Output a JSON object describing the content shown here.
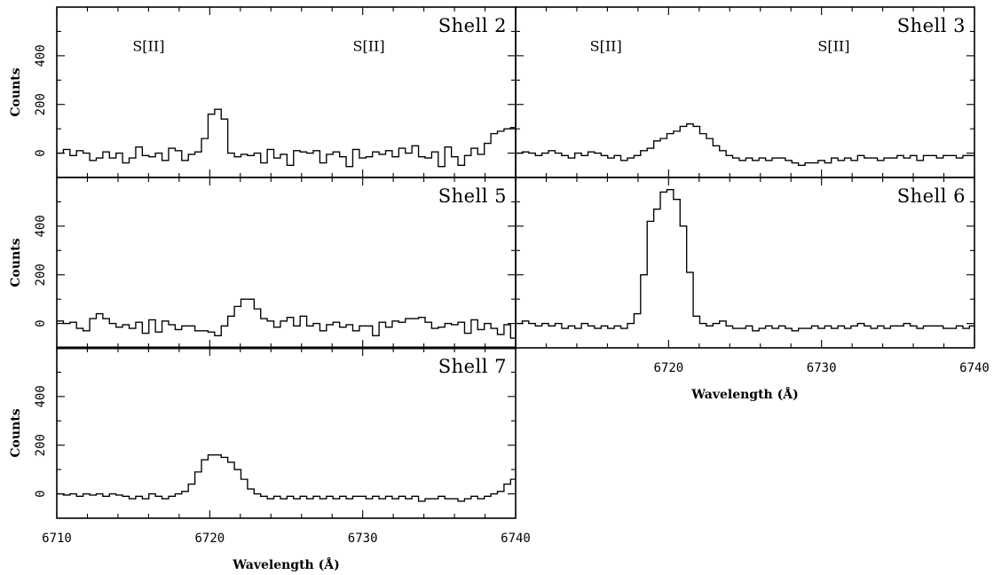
{
  "chart_data": [
    {
      "type": "line",
      "title": "Shell 2",
      "xlim": [
        6710,
        6740
      ],
      "ylim": [
        -100,
        600
      ],
      "ylabel": "Counts",
      "xlabel": "",
      "x_ticks": [
        6710,
        6720,
        6730,
        6740
      ],
      "y_ticks": [
        0,
        200,
        400
      ],
      "annotations": [
        {
          "text": "S[II]",
          "x": 6716.0,
          "y": 420
        },
        {
          "text": "S[II]",
          "x": 6730.4,
          "y": 420
        }
      ],
      "series": [
        {
          "x0": 6710.0,
          "step": 0.43,
          "values": [
            0,
            15,
            -10,
            10,
            0,
            -30,
            -20,
            5,
            -20,
            0,
            -40,
            -20,
            25,
            -10,
            -15,
            0,
            -30,
            20,
            10,
            -30,
            -5,
            5,
            60,
            160,
            180,
            140,
            0,
            -15,
            -5,
            -10,
            0,
            -40,
            15,
            -20,
            -5,
            -50,
            10,
            5,
            0,
            10,
            -40,
            -5,
            5,
            -15,
            -55,
            15,
            -20,
            -15,
            5,
            -5,
            10,
            -15,
            20,
            0,
            30,
            -15,
            -20,
            5,
            -55,
            25,
            -15,
            -50,
            -10,
            20,
            -5,
            40,
            80,
            90,
            100,
            105,
            100,
            -70,
            -30,
            10,
            -40,
            -20,
            -25,
            -10,
            -30,
            0,
            -20,
            -25,
            -5,
            -30,
            0,
            -20,
            0,
            -45,
            10,
            -15,
            -20,
            -25,
            -5,
            -50,
            -20,
            10,
            -5,
            -10,
            0,
            -5
          ]
        }
      ]
    },
    {
      "type": "line",
      "title": "Shell 3",
      "xlim": [
        6710,
        6740
      ],
      "ylim": [
        -100,
        600
      ],
      "ylabel": "",
      "xlabel": "",
      "x_ticks": [
        6710,
        6720,
        6730,
        6740
      ],
      "y_ticks": [
        0,
        200,
        400
      ],
      "annotations": [
        {
          "text": "S[II]",
          "x": 6715.9,
          "y": 420
        },
        {
          "text": "S[II]",
          "x": 6730.8,
          "y": 420
        }
      ],
      "series": [
        {
          "x0": 6710.0,
          "step": 0.43,
          "values": [
            0,
            5,
            0,
            -10,
            0,
            10,
            0,
            -10,
            -20,
            0,
            -10,
            5,
            0,
            -10,
            -20,
            -10,
            -30,
            -20,
            -10,
            10,
            20,
            50,
            60,
            80,
            90,
            110,
            120,
            110,
            80,
            60,
            30,
            10,
            -10,
            -20,
            -30,
            -20,
            -30,
            -20,
            -30,
            -20,
            -20,
            -30,
            -40,
            -50,
            -40,
            -40,
            -30,
            -40,
            -20,
            -30,
            -20,
            -30,
            -10,
            -20,
            -20,
            -30,
            -20,
            -20,
            -10,
            -20,
            -10,
            -30,
            -10,
            -10,
            -20,
            -10,
            -10,
            -20,
            -10,
            -10,
            0,
            -10,
            10,
            20,
            40,
            50,
            70,
            80,
            90,
            70,
            50,
            0,
            -10,
            -30,
            -20,
            -30,
            -10,
            -20,
            -20,
            -10,
            -20,
            -10,
            -20,
            -30,
            -20,
            -20,
            -30,
            -20,
            -10,
            -20,
            -30,
            -20,
            -30,
            -20,
            -10,
            -30,
            -20,
            0
          ]
        }
      ]
    },
    {
      "type": "line",
      "title": "Shell 5",
      "xlim": [
        6710,
        6740
      ],
      "ylim": [
        -100,
        600
      ],
      "ylabel": "Counts",
      "xlabel": "",
      "x_ticks": [
        6710,
        6720,
        6730,
        6740
      ],
      "y_ticks": [
        0,
        200,
        400
      ],
      "annotations": [],
      "series": [
        {
          "x0": 6710.0,
          "step": 0.43,
          "values": [
            10,
            0,
            5,
            -20,
            -30,
            20,
            40,
            20,
            0,
            -15,
            -5,
            -20,
            5,
            -40,
            15,
            -35,
            10,
            -5,
            -25,
            -10,
            -10,
            -30,
            -30,
            -35,
            -50,
            -10,
            30,
            70,
            100,
            100,
            60,
            20,
            10,
            -15,
            10,
            25,
            -10,
            30,
            -10,
            0,
            -30,
            -5,
            5,
            -15,
            -5,
            -30,
            -10,
            -10,
            -50,
            5,
            -15,
            10,
            5,
            20,
            20,
            25,
            5,
            -20,
            -15,
            0,
            -5,
            5,
            -40,
            15,
            -25,
            0,
            -20,
            -45,
            -5,
            -60,
            -15,
            25,
            -10,
            -10,
            20,
            -25,
            20,
            40,
            35,
            35,
            25,
            -20,
            -5,
            -30,
            -70,
            -20,
            -45,
            -10,
            -35,
            15,
            -30,
            -5,
            -20,
            -5,
            -10,
            0,
            -30,
            -55,
            -10,
            -70
          ]
        }
      ]
    },
    {
      "type": "line",
      "title": "Shell 6",
      "xlim": [
        6710,
        6740
      ],
      "ylim": [
        -100,
        600
      ],
      "ylabel": "",
      "xlabel": "Wavelength (Å)",
      "x_ticks": [
        6720,
        6730,
        6740
      ],
      "y_ticks": [
        0,
        200,
        400
      ],
      "annotations": [],
      "series": [
        {
          "x0": 6710.0,
          "step": 0.43,
          "values": [
            0,
            10,
            0,
            -10,
            0,
            -10,
            0,
            -20,
            -10,
            -20,
            0,
            -10,
            -20,
            -10,
            -20,
            -10,
            -20,
            0,
            40,
            200,
            420,
            470,
            540,
            550,
            510,
            400,
            210,
            30,
            0,
            -10,
            0,
            10,
            -10,
            -20,
            -20,
            -10,
            -30,
            -20,
            -10,
            -20,
            -10,
            -20,
            -30,
            -20,
            -20,
            -10,
            -20,
            -10,
            -20,
            -10,
            -20,
            -10,
            0,
            -10,
            -20,
            -10,
            -20,
            -10,
            -10,
            0,
            -10,
            -20,
            -10,
            -10,
            -10,
            -20,
            -20,
            -10,
            -20,
            -10,
            0,
            -10,
            -20,
            -10,
            -10,
            60,
            140,
            220,
            300,
            330,
            340,
            330,
            300,
            200,
            60,
            0,
            0,
            -20,
            -10,
            -30,
            -10,
            -20,
            -20,
            -10,
            -20,
            -30,
            -10,
            -20,
            -20,
            -10,
            -30,
            -20,
            -10,
            -20,
            -10,
            -20,
            -10,
            0
          ]
        }
      ]
    },
    {
      "type": "line",
      "title": "Shell 7",
      "xlim": [
        6710,
        6740
      ],
      "ylim": [
        -100,
        600
      ],
      "ylabel": "Counts",
      "xlabel": "Wavelength (Å)",
      "x_ticks": [
        6710,
        6720,
        6730,
        6740
      ],
      "y_ticks": [
        0,
        200,
        400
      ],
      "annotations": [],
      "series": [
        {
          "x0": 6710.0,
          "step": 0.43,
          "values": [
            0,
            -5,
            0,
            -10,
            0,
            -5,
            0,
            -10,
            0,
            -5,
            -10,
            -20,
            -10,
            -20,
            0,
            -10,
            -20,
            -10,
            0,
            10,
            40,
            90,
            140,
            160,
            160,
            150,
            130,
            100,
            60,
            20,
            0,
            -10,
            -20,
            -10,
            -20,
            -10,
            -20,
            -10,
            -20,
            -10,
            -20,
            -10,
            -20,
            -10,
            -20,
            -10,
            -10,
            -20,
            -10,
            -20,
            -10,
            -20,
            -10,
            -20,
            -10,
            -30,
            -20,
            -20,
            -10,
            -20,
            -20,
            -30,
            -20,
            -10,
            -20,
            -10,
            0,
            10,
            40,
            60,
            90,
            110,
            120,
            110,
            80,
            40,
            10,
            -10,
            -20,
            -10,
            -20,
            -10,
            -20,
            -30,
            -20,
            -10,
            -20,
            -10,
            0,
            10,
            20,
            -10,
            -10,
            -20,
            -20,
            -10,
            -20,
            -10,
            -20,
            -10,
            -20,
            0,
            -5,
            0
          ]
        }
      ]
    }
  ]
}
